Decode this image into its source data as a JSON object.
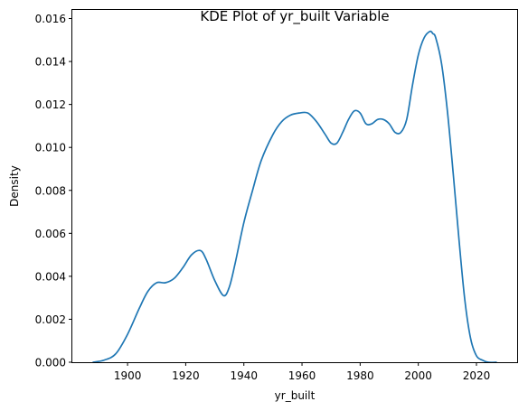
{
  "chart_data": {
    "type": "line",
    "title": "KDE Plot of yr_built Variable",
    "xlabel": "yr_built",
    "ylabel": "Density",
    "xlim": [
      1881,
      2034
    ],
    "ylim": [
      0,
      0.0164
    ],
    "xticks": [
      1900,
      1920,
      1940,
      1960,
      1980,
      2000,
      2020
    ],
    "yticks": [
      0.0,
      0.002,
      0.004,
      0.006,
      0.008,
      0.01,
      0.012,
      0.014,
      0.016
    ],
    "ytick_labels": [
      "0.000",
      "0.002",
      "0.004",
      "0.006",
      "0.008",
      "0.010",
      "0.012",
      "0.014",
      "0.016"
    ],
    "grid": false,
    "series": [
      {
        "color": "#1f77b4",
        "x": [
          1888,
          1892,
          1896,
          1900,
          1904,
          1907,
          1910,
          1913,
          1916,
          1919,
          1922,
          1925,
          1927,
          1930,
          1933,
          1935,
          1937,
          1940,
          1943,
          1946,
          1950,
          1953,
          1956,
          1959,
          1962,
          1965,
          1968,
          1970,
          1972,
          1974,
          1976,
          1978,
          1980,
          1982,
          1984,
          1986,
          1988,
          1990,
          1992,
          1994,
          1996,
          1998,
          2000,
          2002,
          2004,
          2005,
          2006,
          2008,
          2010,
          2012,
          2014,
          2016,
          2018,
          2020,
          2022,
          2024,
          2027
        ],
        "y": [
          0.0,
          0.0001,
          0.0004,
          0.0013,
          0.0025,
          0.0033,
          0.0037,
          0.0037,
          0.0039,
          0.0044,
          0.005,
          0.0052,
          0.0048,
          0.0038,
          0.0031,
          0.0035,
          0.0046,
          0.0065,
          0.008,
          0.0094,
          0.0106,
          0.0112,
          0.0115,
          0.0116,
          0.0116,
          0.0112,
          0.0106,
          0.0102,
          0.0102,
          0.0107,
          0.0113,
          0.0117,
          0.0116,
          0.0111,
          0.0111,
          0.0113,
          0.0113,
          0.0111,
          0.0107,
          0.0107,
          0.0113,
          0.0129,
          0.0143,
          0.0151,
          0.0154,
          0.0153,
          0.0151,
          0.0139,
          0.0117,
          0.0088,
          0.0057,
          0.0029,
          0.0011,
          0.0003,
          0.0001,
          0.0,
          0.0
        ]
      }
    ]
  }
}
